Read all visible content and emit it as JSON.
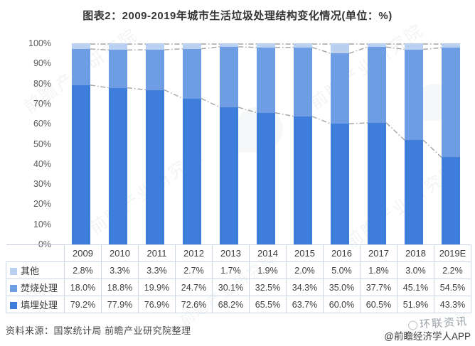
{
  "title": "图表2：2009-2019年城市生活垃圾处理结构变化情况(单位：%)",
  "source_note": "资料来源：国家统计局 前瞻产业研究院整理",
  "brand": {
    "overlay_watermark": "环联资讯",
    "credit": "@前瞻经济学人APP"
  },
  "watermark_text": "前瞻产业研究院",
  "chart_data": {
    "type": "bar",
    "stacked": true,
    "title": "图表2：2009-2019年城市生活垃圾处理结构变化情况(单位：%)",
    "xlabel": "",
    "ylabel": "",
    "ylim": [
      0,
      100
    ],
    "grid": false,
    "legend_position": "table-left",
    "yticks_top_down": [
      "100%",
      "90%",
      "80%",
      "70%",
      "60%",
      "50%",
      "40%",
      "30%",
      "20%",
      "10%",
      "0%"
    ],
    "categories": [
      "2009",
      "2010",
      "2011",
      "2012",
      "2013",
      "2014",
      "2015",
      "2016",
      "2017",
      "2018",
      "2019E"
    ],
    "series": [
      {
        "name": "填埋处理",
        "color": "#3e7eda",
        "values": [
          79.2,
          77.9,
          76.9,
          72.6,
          68.2,
          65.5,
          63.7,
          60.0,
          60.5,
          51.9,
          43.3
        ]
      },
      {
        "name": "焚烧处理",
        "color": "#6f9de3",
        "values": [
          18.0,
          18.8,
          19.9,
          24.7,
          30.1,
          32.5,
          34.3,
          35.0,
          37.7,
          45.1,
          54.5
        ]
      },
      {
        "name": "其他",
        "color": "#b9d0f0",
        "values": [
          2.8,
          3.3,
          3.3,
          2.7,
          1.7,
          1.9,
          2.0,
          5.0,
          1.8,
          3.0,
          2.2
        ]
      }
    ],
    "connector_lines": {
      "style": "dash-dot",
      "color": "#a3a3a3"
    },
    "table_row_order_top_to_bottom": [
      "其他",
      "焚烧处理",
      "填埋处理"
    ],
    "value_suffix": "%"
  }
}
